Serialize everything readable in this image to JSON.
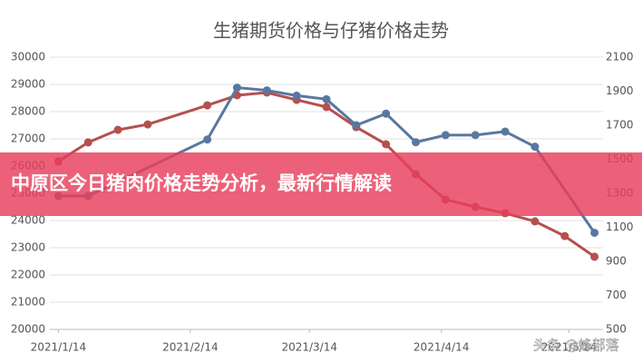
{
  "chart_data": {
    "type": "line",
    "title": "生猪期货价格与仔猪价格走势",
    "xlim": [
      "2021/1/12",
      "2021/5/22"
    ],
    "xticks": [
      "2021/1/14",
      "2021/2/14",
      "2021/3/14",
      "2021/4/14",
      "2021/5/14"
    ],
    "ylim": [
      20000,
      30000
    ],
    "yticks": [
      20000,
      21000,
      22000,
      23000,
      24000,
      25000,
      26000,
      27000,
      28000,
      29000,
      30000
    ],
    "y2lim": [
      500,
      2100
    ],
    "y2ticks": [
      500,
      700,
      900,
      1100,
      1300,
      1500,
      1700,
      1900,
      2100
    ],
    "grid": true,
    "series": [
      {
        "color": "#b5504e",
        "x": [
          "2021/1/14",
          "2021/1/21",
          "2021/1/28",
          "2021/2/4",
          "2021/2/18",
          "2021/2/25",
          "2021/3/4",
          "2021/3/11",
          "2021/3/18",
          "2021/3/25",
          "2021/4/1",
          "2021/4/8",
          "2021/4/15",
          "2021/4/22",
          "2021/4/29",
          "2021/5/6",
          "2021/5/13",
          "2021/5/20"
        ],
        "values": [
          26170,
          26870,
          27330,
          27530,
          28230,
          28600,
          28700,
          28430,
          28170,
          27430,
          26800,
          25700,
          24770,
          24500,
          24270,
          23970,
          23430,
          22670
        ]
      },
      {
        "color": "#5878a0",
        "axis": "y2",
        "x": [
          "2021/1/14",
          "2021/1/21",
          "2021/2/18",
          "2021/2/25",
          "2021/3/4",
          "2021/3/11",
          "2021/3/18",
          "2021/3/25",
          "2021/4/1",
          "2021/4/8",
          "2021/4/15",
          "2021/4/22",
          "2021/4/29",
          "2021/5/6",
          "2021/5/20"
        ],
        "values": [
          1284,
          1284,
          1616,
          1921,
          1905,
          1874,
          1853,
          1700,
          1768,
          1600,
          1642,
          1642,
          1663,
          1574,
          1068
        ]
      }
    ]
  },
  "banner": {
    "text": "中原区今日猪肉价格走势分析，最新行情解读"
  },
  "watermark": "头条 @蜂部落"
}
